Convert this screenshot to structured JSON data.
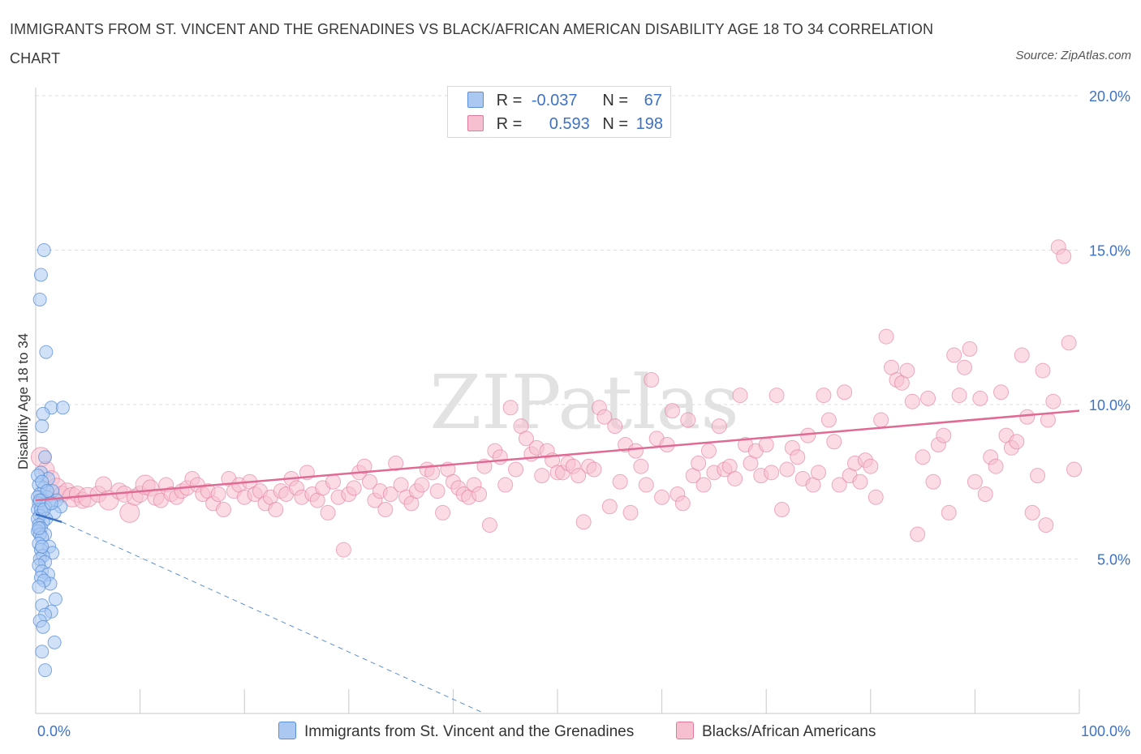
{
  "title": "IMMIGRANTS FROM ST. VINCENT AND THE GRENADINES VS BLACK/AFRICAN AMERICAN DISABILITY AGE 18 TO 34 CORRELATION CHART",
  "source": "Source: ZipAtlas.com",
  "watermark": "ZIPatlas",
  "legend": {
    "r_label": "R =",
    "n_label": "N =",
    "series": [
      {
        "name": "Immigrants from St. Vincent and the Grenadines",
        "r": "-0.037",
        "n": "67",
        "fill": "#aac8f2",
        "stroke": "#5b8fd6"
      },
      {
        "name": "Blacks/African Americans",
        "r": "0.593",
        "n": "198",
        "fill": "#f7c0d0",
        "stroke": "#e07a9c"
      }
    ]
  },
  "chart_data": {
    "type": "scatter",
    "title": "IMMIGRANTS FROM ST. VINCENT AND THE GRENADINES VS BLACK/AFRICAN AMERICAN DISABILITY AGE 18 TO 34 CORRELATION CHART",
    "xlabel": "",
    "ylabel": "Disability Age 18 to 34",
    "xlim": [
      0,
      100
    ],
    "ylim": [
      0,
      20
    ],
    "x_tick_labels": [
      "0.0%",
      "100.0%"
    ],
    "y_ticks": [
      5,
      10,
      15,
      20
    ],
    "y_tick_labels": [
      "5.0%",
      "10.0%",
      "15.0%",
      "20.0%"
    ],
    "grid": true,
    "series": [
      {
        "name": "Immigrants from St. Vincent and the Grenadines",
        "color": "#5b8fd6",
        "fill": "#aac8f2",
        "trend": {
          "x": [
            0,
            2.5
          ],
          "y": [
            6.45,
            6.2
          ]
        },
        "trend_extension": {
          "x": [
            2.5,
            43
          ],
          "y": [
            6.2,
            0
          ]
        },
        "points": [
          [
            0.8,
            15.0
          ],
          [
            0.5,
            14.2
          ],
          [
            0.4,
            13.4
          ],
          [
            1.0,
            11.7
          ],
          [
            1.5,
            9.9
          ],
          [
            2.6,
            9.9
          ],
          [
            0.7,
            9.7
          ],
          [
            0.6,
            9.3
          ],
          [
            0.9,
            8.3
          ],
          [
            0.5,
            7.8
          ],
          [
            1.2,
            7.6
          ],
          [
            0.3,
            7.4
          ],
          [
            0.8,
            7.3
          ],
          [
            1.6,
            7.2
          ],
          [
            0.4,
            7.1
          ],
          [
            1.1,
            7.0
          ],
          [
            0.2,
            7.0
          ],
          [
            2.0,
            6.9
          ],
          [
            0.6,
            6.9
          ],
          [
            1.3,
            6.8
          ],
          [
            0.3,
            6.8
          ],
          [
            0.9,
            6.7
          ],
          [
            2.4,
            6.7
          ],
          [
            0.2,
            6.6
          ],
          [
            0.5,
            6.6
          ],
          [
            1.8,
            6.5
          ],
          [
            0.4,
            6.4
          ],
          [
            1.0,
            6.3
          ],
          [
            0.2,
            6.3
          ],
          [
            0.7,
            6.2
          ],
          [
            0.3,
            6.1
          ],
          [
            0.5,
            6.0
          ],
          [
            0.2,
            5.9
          ],
          [
            0.9,
            5.8
          ],
          [
            0.4,
            5.8
          ],
          [
            0.6,
            5.7
          ],
          [
            0.3,
            5.5
          ],
          [
            1.3,
            5.4
          ],
          [
            0.5,
            5.3
          ],
          [
            1.6,
            5.2
          ],
          [
            0.7,
            5.1
          ],
          [
            0.4,
            5.0
          ],
          [
            0.9,
            4.9
          ],
          [
            0.3,
            4.8
          ],
          [
            0.6,
            4.6
          ],
          [
            1.2,
            4.5
          ],
          [
            0.5,
            4.4
          ],
          [
            1.4,
            4.2
          ],
          [
            0.8,
            4.3
          ],
          [
            0.3,
            4.1
          ],
          [
            1.9,
            3.7
          ],
          [
            0.6,
            3.5
          ],
          [
            1.5,
            3.3
          ],
          [
            0.9,
            3.2
          ],
          [
            0.4,
            3.0
          ],
          [
            0.7,
            2.8
          ],
          [
            1.8,
            2.3
          ],
          [
            0.6,
            2.0
          ],
          [
            0.9,
            1.4
          ],
          [
            0.2,
            7.7
          ],
          [
            0.6,
            7.5
          ],
          [
            1.1,
            7.2
          ],
          [
            0.4,
            6.9
          ],
          [
            0.8,
            6.6
          ],
          [
            1.5,
            6.8
          ],
          [
            0.3,
            6.0
          ],
          [
            0.6,
            5.4
          ]
        ]
      },
      {
        "name": "Blacks/African Americans",
        "color": "#e07a9c",
        "fill": "#f7c0d0",
        "trend": {
          "x": [
            0,
            100
          ],
          "y": [
            6.9,
            9.8
          ]
        },
        "points": [
          [
            0.5,
            8.3
          ],
          [
            1.0,
            7.9
          ],
          [
            1.5,
            7.6
          ],
          [
            2.0,
            7.3
          ],
          [
            2.5,
            7.1
          ],
          [
            3.0,
            7.2
          ],
          [
            3.5,
            7.0
          ],
          [
            4.0,
            7.1
          ],
          [
            4.5,
            6.9
          ],
          [
            5.0,
            7.0
          ],
          [
            6.0,
            7.1
          ],
          [
            6.5,
            7.4
          ],
          [
            7.0,
            6.9
          ],
          [
            8.0,
            7.2
          ],
          [
            8.5,
            7.1
          ],
          [
            9.0,
            6.5
          ],
          [
            9.5,
            7.0
          ],
          [
            10,
            7.1
          ],
          [
            10.5,
            7.4
          ],
          [
            11,
            7.3
          ],
          [
            11.5,
            7.0
          ],
          [
            12,
            6.9
          ],
          [
            12.5,
            7.4
          ],
          [
            13,
            7.1
          ],
          [
            13.5,
            7.0
          ],
          [
            14,
            7.2
          ],
          [
            14.5,
            7.3
          ],
          [
            15,
            7.6
          ],
          [
            15.5,
            7.4
          ],
          [
            16,
            7.1
          ],
          [
            16.5,
            7.2
          ],
          [
            17,
            6.8
          ],
          [
            17.5,
            7.1
          ],
          [
            18,
            6.6
          ],
          [
            18.5,
            7.6
          ],
          [
            19,
            7.2
          ],
          [
            19.5,
            7.4
          ],
          [
            20,
            7.0
          ],
          [
            20.5,
            7.5
          ],
          [
            21,
            7.1
          ],
          [
            21.5,
            7.2
          ],
          [
            22,
            6.8
          ],
          [
            22.5,
            7.0
          ],
          [
            23,
            6.6
          ],
          [
            23.5,
            7.2
          ],
          [
            24,
            7.1
          ],
          [
            24.5,
            7.6
          ],
          [
            25,
            7.3
          ],
          [
            25.5,
            7.0
          ],
          [
            26,
            7.8
          ],
          [
            26.5,
            7.1
          ],
          [
            27,
            6.9
          ],
          [
            27.5,
            7.3
          ],
          [
            28,
            6.5
          ],
          [
            28.5,
            7.5
          ],
          [
            29,
            7.0
          ],
          [
            29.5,
            5.3
          ],
          [
            30,
            7.1
          ],
          [
            30.5,
            7.3
          ],
          [
            31,
            7.8
          ],
          [
            31.5,
            8.0
          ],
          [
            32,
            7.5
          ],
          [
            32.5,
            6.9
          ],
          [
            33,
            7.2
          ],
          [
            33.5,
            6.6
          ],
          [
            34,
            7.1
          ],
          [
            34.5,
            8.1
          ],
          [
            35,
            7.4
          ],
          [
            35.5,
            7.0
          ],
          [
            36,
            6.8
          ],
          [
            36.5,
            7.2
          ],
          [
            37,
            7.4
          ],
          [
            37.5,
            7.9
          ],
          [
            38,
            7.8
          ],
          [
            38.5,
            7.2
          ],
          [
            39,
            6.5
          ],
          [
            39.5,
            7.9
          ],
          [
            40,
            7.5
          ],
          [
            40.5,
            7.3
          ],
          [
            41,
            7.1
          ],
          [
            41.5,
            7.0
          ],
          [
            42,
            7.4
          ],
          [
            42.5,
            7.1
          ],
          [
            43,
            8.0
          ],
          [
            43.5,
            6.1
          ],
          [
            44,
            8.5
          ],
          [
            44.5,
            8.3
          ],
          [
            45,
            7.4
          ],
          [
            45.5,
            9.9
          ],
          [
            46,
            7.9
          ],
          [
            46.5,
            9.3
          ],
          [
            47,
            8.9
          ],
          [
            47.5,
            8.4
          ],
          [
            48,
            8.6
          ],
          [
            48.5,
            7.7
          ],
          [
            49,
            8.5
          ],
          [
            49.5,
            8.2
          ],
          [
            50,
            7.8
          ],
          [
            50.5,
            7.8
          ],
          [
            51,
            8.1
          ],
          [
            51.5,
            8.0
          ],
          [
            52,
            7.7
          ],
          [
            52.5,
            6.2
          ],
          [
            53,
            8.0
          ],
          [
            53.5,
            7.9
          ],
          [
            54,
            9.9
          ],
          [
            54.5,
            9.6
          ],
          [
            55,
            6.7
          ],
          [
            55.5,
            9.3
          ],
          [
            56,
            7.5
          ],
          [
            56.5,
            8.7
          ],
          [
            57,
            6.5
          ],
          [
            57.5,
            8.5
          ],
          [
            58,
            8.0
          ],
          [
            58.5,
            7.4
          ],
          [
            59,
            10.8
          ],
          [
            59.5,
            8.9
          ],
          [
            60,
            7.0
          ],
          [
            60.5,
            8.7
          ],
          [
            61,
            9.8
          ],
          [
            61.5,
            7.1
          ],
          [
            62,
            6.8
          ],
          [
            62.5,
            9.5
          ],
          [
            63,
            7.7
          ],
          [
            63.5,
            8.1
          ],
          [
            64,
            7.4
          ],
          [
            64.5,
            8.5
          ],
          [
            65,
            7.8
          ],
          [
            65.5,
            9.3
          ],
          [
            66,
            7.9
          ],
          [
            66.5,
            8.0
          ],
          [
            67,
            7.6
          ],
          [
            67.5,
            10.3
          ],
          [
            68,
            8.7
          ],
          [
            68.5,
            8.1
          ],
          [
            69,
            8.5
          ],
          [
            69.5,
            7.7
          ],
          [
            70,
            8.7
          ],
          [
            70.5,
            7.8
          ],
          [
            71,
            10.3
          ],
          [
            71.5,
            6.6
          ],
          [
            72,
            7.9
          ],
          [
            72.5,
            8.6
          ],
          [
            73,
            8.3
          ],
          [
            73.5,
            7.6
          ],
          [
            74,
            9.0
          ],
          [
            74.5,
            7.4
          ],
          [
            75,
            7.8
          ],
          [
            75.5,
            10.3
          ],
          [
            76,
            9.5
          ],
          [
            76.5,
            8.8
          ],
          [
            77,
            7.4
          ],
          [
            77.5,
            10.4
          ],
          [
            78,
            7.7
          ],
          [
            78.5,
            8.1
          ],
          [
            79,
            7.5
          ],
          [
            79.5,
            8.2
          ],
          [
            80,
            8.0
          ],
          [
            80.5,
            7.0
          ],
          [
            81,
            9.5
          ],
          [
            81.5,
            12.2
          ],
          [
            82,
            11.2
          ],
          [
            82.5,
            10.8
          ],
          [
            83,
            10.7
          ],
          [
            83.5,
            11.1
          ],
          [
            84,
            10.1
          ],
          [
            84.5,
            5.8
          ],
          [
            85,
            8.3
          ],
          [
            85.5,
            10.2
          ],
          [
            86,
            7.5
          ],
          [
            86.5,
            8.7
          ],
          [
            87,
            9.0
          ],
          [
            87.5,
            6.5
          ],
          [
            88,
            11.6
          ],
          [
            88.5,
            10.3
          ],
          [
            89,
            11.2
          ],
          [
            89.5,
            11.8
          ],
          [
            90,
            7.5
          ],
          [
            90.5,
            10.2
          ],
          [
            91,
            7.1
          ],
          [
            91.5,
            8.3
          ],
          [
            92,
            8.0
          ],
          [
            92.5,
            10.4
          ],
          [
            93,
            9.0
          ],
          [
            93.5,
            8.6
          ],
          [
            94,
            8.8
          ],
          [
            94.5,
            11.6
          ],
          [
            95,
            9.6
          ],
          [
            95.5,
            6.5
          ],
          [
            96,
            7.7
          ],
          [
            96.5,
            11.1
          ],
          [
            97,
            9.5
          ],
          [
            97.5,
            10.1
          ],
          [
            98,
            15.1
          ],
          [
            98.5,
            14.8
          ],
          [
            99,
            12.0
          ],
          [
            99.5,
            7.9
          ],
          [
            96.8,
            6.1
          ]
        ]
      }
    ]
  }
}
